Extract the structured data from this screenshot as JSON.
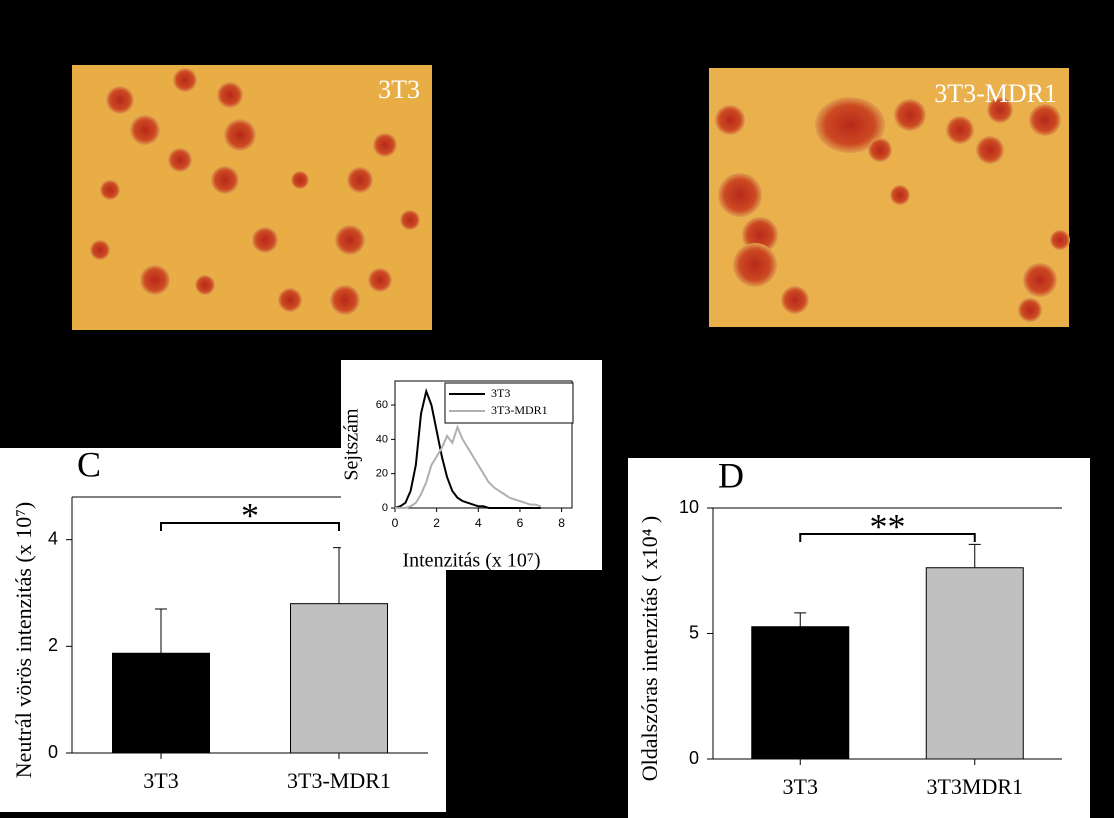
{
  "images": [
    {
      "label": "3T3"
    },
    {
      "label": "3T3-MDR1"
    }
  ],
  "chart_data": [
    {
      "type": "line",
      "ylabel": "Sejtszám",
      "xlabel": "Intenzitás (x 10⁷)",
      "x": [
        0,
        0.25,
        0.5,
        0.75,
        1,
        1.25,
        1.5,
        1.75,
        2,
        2.25,
        2.5,
        2.75,
        3,
        3.25,
        3.5,
        3.75,
        4,
        4.25,
        4.5,
        4.75,
        5,
        5.25,
        5.5,
        5.75,
        6,
        6.25,
        6.5,
        6.75,
        7
      ],
      "series": [
        {
          "name": "3T3",
          "color": "#000000",
          "values": [
            0,
            1,
            3,
            10,
            25,
            55,
            68,
            60,
            45,
            30,
            18,
            10,
            6,
            4,
            3,
            2,
            1,
            1,
            0,
            0,
            0,
            0,
            0,
            0,
            0,
            0,
            0,
            0,
            0
          ]
        },
        {
          "name": "3T3-MDR1",
          "color": "#b0b0b0",
          "values": [
            0,
            0,
            0,
            1,
            3,
            8,
            15,
            25,
            30,
            35,
            42,
            38,
            47,
            40,
            35,
            30,
            25,
            20,
            15,
            12,
            10,
            8,
            6,
            5,
            4,
            3,
            2,
            2,
            1
          ]
        }
      ],
      "xlim": [
        0,
        8.5
      ],
      "xticks": [
        0,
        2,
        4,
        6,
        8
      ],
      "ylim": [
        0,
        74
      ],
      "yticks": [
        0,
        20,
        40,
        60
      ]
    },
    {
      "type": "bar",
      "panel": "C",
      "ylabel": "Neutrál vörös intenzitás (x 10⁷)",
      "categories": [
        "3T3",
        "3T3-MDR1"
      ],
      "values": [
        1.87,
        2.8
      ],
      "errors": [
        0.83,
        1.05
      ],
      "colors": [
        "#000000",
        "#c0c0c0"
      ],
      "annotation": "*",
      "ylim": [
        0,
        4.8
      ],
      "yticks": [
        0,
        2,
        4
      ]
    },
    {
      "type": "bar",
      "panel": "D",
      "ylabel": "Oldalszóras intenzitás ( x10⁴ )",
      "categories": [
        "3T3",
        "3T3MDR1"
      ],
      "values": [
        5.27,
        7.62
      ],
      "errors": [
        0.55,
        0.93
      ],
      "colors": [
        "#000000",
        "#c0c0c0"
      ],
      "annotation": "**",
      "ylim": [
        0,
        10
      ],
      "yticks": [
        0,
        5,
        10
      ]
    }
  ]
}
